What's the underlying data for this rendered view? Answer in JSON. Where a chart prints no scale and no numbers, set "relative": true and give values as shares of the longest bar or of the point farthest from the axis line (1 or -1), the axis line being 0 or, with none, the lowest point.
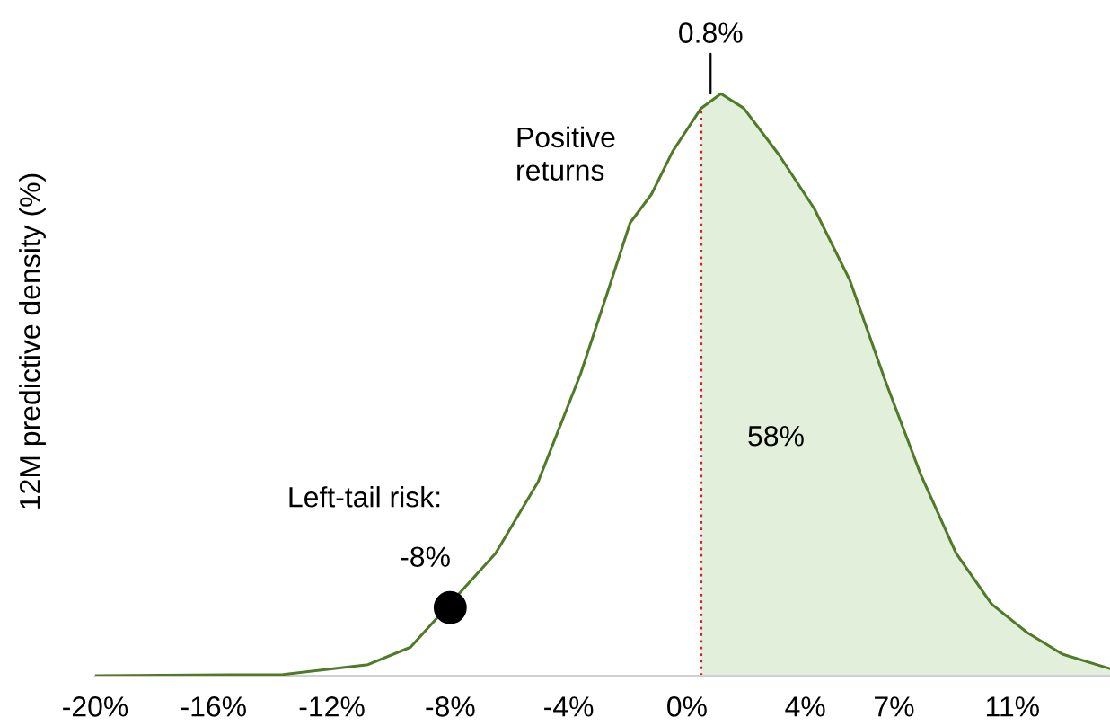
{
  "chart_data": {
    "type": "line",
    "ylabel": "12M predictive density (%)",
    "relative": true,
    "xlim": [
      -20,
      14.3
    ],
    "xticks": [
      {
        "value": -20,
        "label": "-20%"
      },
      {
        "value": -16,
        "label": "-16%"
      },
      {
        "value": -12,
        "label": "-12%"
      },
      {
        "value": -8,
        "label": "-8%"
      },
      {
        "value": -4,
        "label": "-4%"
      },
      {
        "value": 0,
        "label": "0%"
      },
      {
        "value": 4,
        "label": "4%"
      },
      {
        "value": 7,
        "label": "7%"
      },
      {
        "value": 11,
        "label": "11%"
      }
    ],
    "series": [
      {
        "type": "area",
        "color": "#e2efda",
        "x": [
          0.48,
          1.15,
          1.92,
          3.11,
          4.31,
          5.51,
          6.71,
          7.9,
          9.1,
          10.3,
          11.5,
          12.69,
          14.3
        ],
        "values": [
          0.975,
          1.0,
          0.975,
          0.895,
          0.802,
          0.679,
          0.506,
          0.346,
          0.21,
          0.123,
          0.074,
          0.037,
          0.012
        ]
      },
      {
        "color": "#4f7a28",
        "x": [
          -20,
          -13.65,
          -10.78,
          -9.34,
          -6.47,
          -5.03,
          -3.59,
          -2.63,
          -1.92,
          -1.2,
          -0.48,
          0.48,
          1.15,
          1.92,
          3.11,
          4.31,
          5.51,
          6.71,
          7.9,
          9.1,
          10.3,
          11.5,
          12.69,
          14.3
        ],
        "values": [
          0,
          0.002,
          0.019,
          0.049,
          0.21,
          0.333,
          0.519,
          0.667,
          0.778,
          0.827,
          0.901,
          0.975,
          1.0,
          0.975,
          0.895,
          0.802,
          0.679,
          0.506,
          0.346,
          0.21,
          0.123,
          0.074,
          0.037,
          0.012
        ]
      },
      {
        "type": "scatter",
        "color": "#000000",
        "x": [
          -8
        ],
        "values": [
          0.117
        ]
      }
    ],
    "ref_lines": [
      {
        "axis": "x",
        "value": 0.48,
        "color": "#e02020",
        "line_style": "dotted"
      }
    ],
    "annotations": [
      {
        "text": "0.8%",
        "x": 0.8,
        "y": 1.0
      },
      "Positive\nreturns",
      "58%",
      "Left-tail risk:",
      {
        "text": "-8%",
        "x": -8,
        "y": 0.117
      }
    ],
    "grid": false,
    "legend": false
  }
}
